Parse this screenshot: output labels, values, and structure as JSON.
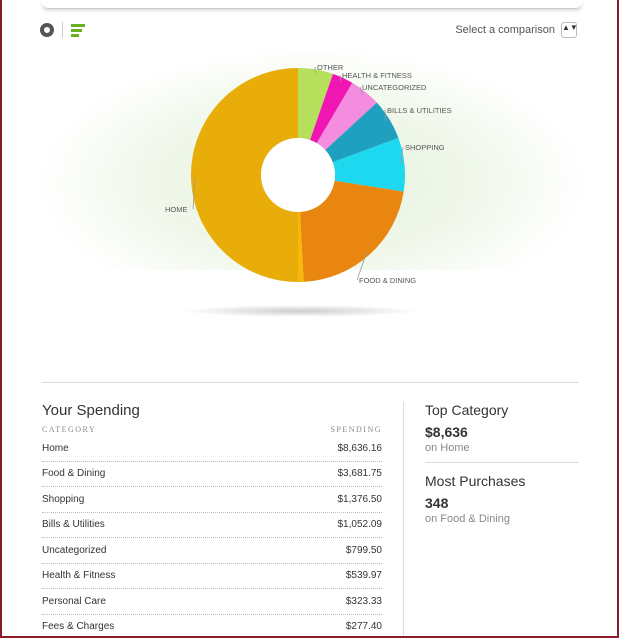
{
  "toolbar": {
    "compare_label": "Select a comparison",
    "compare_arrows": "▲▼"
  },
  "chart_data": {
    "type": "pie",
    "categories": [
      "Other",
      "Health & Fitness",
      "Uncategorized",
      "Bills & Utilities",
      "Shopping",
      "Food & Dining",
      "Home"
    ],
    "slice_labels": [
      "OTHER",
      "HEALTH & FITNESS",
      "UNCATEGORIZED",
      "BILLS & UTILITIES",
      "SHOPPING",
      "FOOD & DINING",
      "HOME"
    ],
    "values": [
      900,
      539.97,
      799.5,
      1052.09,
      1376.5,
      3681.75,
      8636.16
    ],
    "colors": [
      "#b6e05c",
      "#f016b4",
      "#f48ce0",
      "#1fa0c0",
      "#1ed8f0",
      "#e8860f",
      "#f7b80a"
    ],
    "donut": true
  },
  "spending": {
    "title": "Your Spending",
    "col_category": "Category",
    "col_spending": "Spending",
    "rows": [
      {
        "category": "Home",
        "amount": "$8,636.16"
      },
      {
        "category": "Food & Dining",
        "amount": "$3,681.75"
      },
      {
        "category": "Shopping",
        "amount": "$1,376.50"
      },
      {
        "category": "Bills & Utilities",
        "amount": "$1,052.09"
      },
      {
        "category": "Uncategorized",
        "amount": "$799.50"
      },
      {
        "category": "Health & Fitness",
        "amount": "$539.97"
      },
      {
        "category": "Personal Care",
        "amount": "$323.33"
      },
      {
        "category": "Fees & Charges",
        "amount": "$277.40"
      }
    ]
  },
  "top_category": {
    "title": "Top Category",
    "value": "$8,636",
    "sub": "on Home"
  },
  "most_purchases": {
    "title": "Most Purchases",
    "value": "348",
    "sub": "on Food & Dining"
  }
}
